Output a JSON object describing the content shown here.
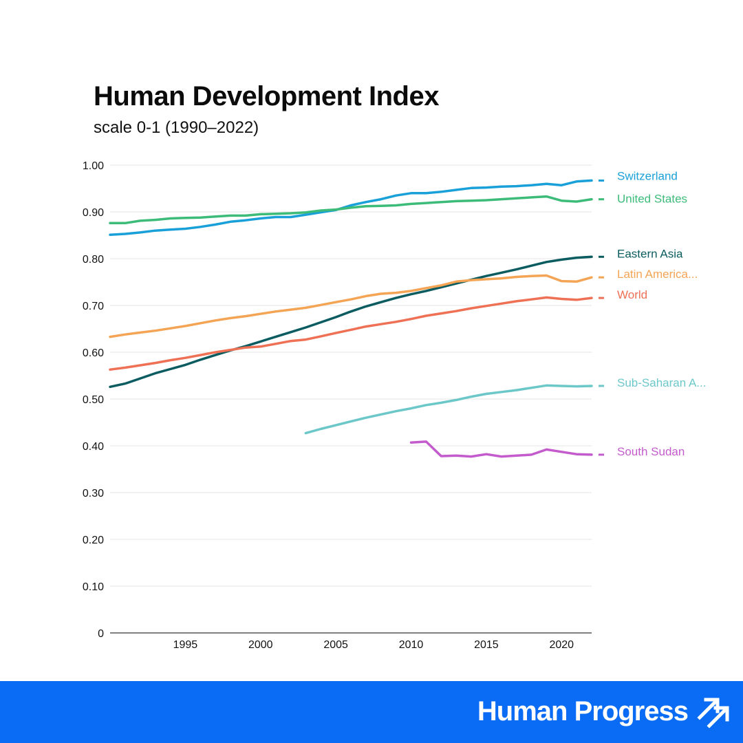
{
  "chart_data": {
    "type": "line",
    "title": "Human Development Index",
    "subtitle": "scale 0-1 (1990–2022)",
    "xlabel": "",
    "ylabel": "",
    "xlim": [
      1990,
      2022
    ],
    "ylim": [
      0,
      1
    ],
    "x_ticks": [
      1995,
      2000,
      2005,
      2010,
      2015,
      2020
    ],
    "x_tick_labels": [
      "1995",
      "2000",
      "2005",
      "2010",
      "2015",
      "2020"
    ],
    "y_ticks": [
      0,
      0.1,
      0.2,
      0.3,
      0.4,
      0.5,
      0.6,
      0.7,
      0.8,
      0.9,
      1.0
    ],
    "y_tick_labels": [
      "0",
      "0.10",
      "0.20",
      "0.30",
      "0.40",
      "0.50",
      "0.60",
      "0.70",
      "0.80",
      "0.90",
      "1.00"
    ],
    "grid": true,
    "legend": "end-of-line labels, right",
    "series": [
      {
        "name": "Switzerland",
        "label": "Switzerland",
        "color": "#1aa0d8",
        "x": [
          1990,
          1991,
          1992,
          1993,
          1994,
          1995,
          1996,
          1997,
          1998,
          1999,
          2000,
          2001,
          2002,
          2003,
          2004,
          2005,
          2006,
          2007,
          2008,
          2009,
          2010,
          2011,
          2012,
          2013,
          2014,
          2015,
          2016,
          2017,
          2018,
          2019,
          2020,
          2021,
          2022
        ],
        "y": [
          0.851,
          0.853,
          0.856,
          0.86,
          0.862,
          0.864,
          0.868,
          0.873,
          0.879,
          0.882,
          0.886,
          0.889,
          0.889,
          0.894,
          0.899,
          0.904,
          0.914,
          0.921,
          0.927,
          0.935,
          0.94,
          0.94,
          0.943,
          0.947,
          0.951,
          0.952,
          0.954,
          0.955,
          0.957,
          0.96,
          0.957,
          0.965,
          0.967
        ]
      },
      {
        "name": "United States",
        "label": "United States",
        "color": "#3dbb78",
        "x": [
          1990,
          1991,
          1992,
          1993,
          1994,
          1995,
          1996,
          1997,
          1998,
          1999,
          2000,
          2001,
          2002,
          2003,
          2004,
          2005,
          2006,
          2007,
          2008,
          2009,
          2010,
          2011,
          2012,
          2013,
          2014,
          2015,
          2016,
          2017,
          2018,
          2019,
          2020,
          2021,
          2022
        ],
        "y": [
          0.876,
          0.876,
          0.881,
          0.883,
          0.886,
          0.887,
          0.888,
          0.89,
          0.892,
          0.892,
          0.895,
          0.896,
          0.897,
          0.899,
          0.903,
          0.905,
          0.909,
          0.912,
          0.913,
          0.914,
          0.917,
          0.919,
          0.921,
          0.923,
          0.924,
          0.925,
          0.927,
          0.929,
          0.931,
          0.933,
          0.924,
          0.922,
          0.927
        ]
      },
      {
        "name": "Eastern Asia",
        "label": "Eastern Asia",
        "color": "#0b5c60",
        "x": [
          1990,
          1991,
          1992,
          1993,
          1994,
          1995,
          1996,
          1997,
          1998,
          1999,
          2000,
          2001,
          2002,
          2003,
          2004,
          2005,
          2006,
          2007,
          2008,
          2009,
          2010,
          2011,
          2012,
          2013,
          2014,
          2015,
          2016,
          2017,
          2018,
          2019,
          2020,
          2021,
          2022
        ],
        "y": [
          0.526,
          0.533,
          0.544,
          0.555,
          0.564,
          0.573,
          0.584,
          0.594,
          0.604,
          0.613,
          0.623,
          0.633,
          0.643,
          0.653,
          0.664,
          0.675,
          0.687,
          0.698,
          0.707,
          0.716,
          0.724,
          0.731,
          0.739,
          0.747,
          0.755,
          0.763,
          0.77,
          0.777,
          0.785,
          0.793,
          0.798,
          0.802,
          0.804
        ]
      },
      {
        "name": "Latin America...",
        "label": "Latin America...",
        "color": "#f4a455",
        "x": [
          1990,
          1991,
          1992,
          1993,
          1994,
          1995,
          1996,
          1997,
          1998,
          1999,
          2000,
          2001,
          2002,
          2003,
          2004,
          2005,
          2006,
          2007,
          2008,
          2009,
          2010,
          2011,
          2012,
          2013,
          2014,
          2015,
          2016,
          2017,
          2018,
          2019,
          2020,
          2021,
          2022
        ],
        "y": [
          0.633,
          0.638,
          0.642,
          0.646,
          0.651,
          0.656,
          0.662,
          0.668,
          0.673,
          0.677,
          0.682,
          0.687,
          0.691,
          0.695,
          0.701,
          0.707,
          0.713,
          0.72,
          0.725,
          0.727,
          0.731,
          0.737,
          0.743,
          0.751,
          0.754,
          0.756,
          0.758,
          0.761,
          0.763,
          0.764,
          0.752,
          0.751,
          0.76
        ]
      },
      {
        "name": "World",
        "label": "World",
        "color": "#ee7055",
        "x": [
          1990,
          1991,
          1992,
          1993,
          1994,
          1995,
          1996,
          1997,
          1998,
          1999,
          2000,
          2001,
          2002,
          2003,
          2004,
          2005,
          2006,
          2007,
          2008,
          2009,
          2010,
          2011,
          2012,
          2013,
          2014,
          2015,
          2016,
          2017,
          2018,
          2019,
          2020,
          2021,
          2022
        ],
        "y": [
          0.563,
          0.567,
          0.572,
          0.577,
          0.583,
          0.588,
          0.594,
          0.6,
          0.605,
          0.61,
          0.612,
          0.618,
          0.624,
          0.627,
          0.634,
          0.641,
          0.648,
          0.655,
          0.66,
          0.665,
          0.671,
          0.678,
          0.683,
          0.688,
          0.694,
          0.699,
          0.704,
          0.709,
          0.713,
          0.717,
          0.714,
          0.712,
          0.716
        ]
      },
      {
        "name": "Sub-Saharan A...",
        "label": "Sub-Saharan A...",
        "color": "#6cc7c9",
        "x": [
          2003,
          2004,
          2005,
          2006,
          2007,
          2008,
          2009,
          2010,
          2011,
          2012,
          2013,
          2014,
          2015,
          2016,
          2017,
          2018,
          2019,
          2020,
          2021,
          2022
        ],
        "y": [
          0.427,
          0.436,
          0.444,
          0.452,
          0.46,
          0.467,
          0.474,
          0.48,
          0.487,
          0.492,
          0.498,
          0.505,
          0.511,
          0.515,
          0.519,
          0.524,
          0.529,
          0.528,
          0.527,
          0.528
        ]
      },
      {
        "name": "South Sudan",
        "label": "South Sudan",
        "color": "#c45bcd",
        "x": [
          2010,
          2011,
          2012,
          2013,
          2014,
          2015,
          2016,
          2017,
          2018,
          2019,
          2020,
          2021,
          2022
        ],
        "y": [
          0.407,
          0.409,
          0.378,
          0.379,
          0.377,
          0.382,
          0.377,
          0.379,
          0.381,
          0.392,
          0.387,
          0.382,
          0.381
        ]
      }
    ]
  },
  "footer": {
    "brand": "Human Progress",
    "background_color": "#0a6cf5",
    "icon": "double-diagonal-arrows-icon"
  }
}
